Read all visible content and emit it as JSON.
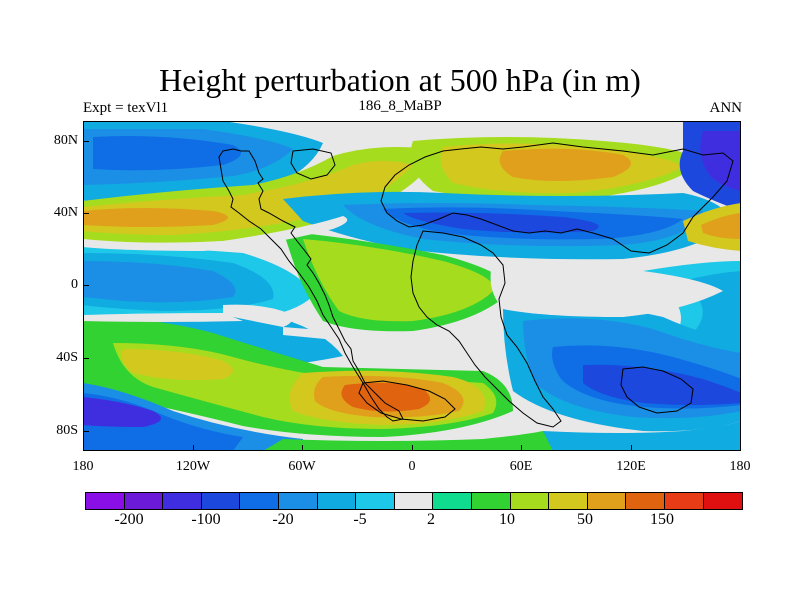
{
  "title": "Height perturbation at 500 hPa (in m)",
  "experiment_label": "Expt = texVl1",
  "period_label": "186_8_MaBP",
  "season_label": "ANN",
  "lat_labels": [
    "80N",
    "40N",
    "0",
    "40S",
    "80S"
  ],
  "lon_labels": [
    "180",
    "120W",
    "60W",
    "0",
    "60E",
    "120E",
    "180"
  ],
  "colorbar": {
    "colors": [
      "#8a0fe6",
      "#6b1ad8",
      "#3f2ee0",
      "#1d48de",
      "#0f6ee6",
      "#1b8fe6",
      "#10abe0",
      "#1ec8e8",
      "#e8e8e8",
      "#10dc90",
      "#32d232",
      "#a6dc1e",
      "#d2c81e",
      "#e0a01c",
      "#e06410",
      "#e83c16",
      "#e01010"
    ],
    "labels": [
      "-200",
      "-100",
      "-20",
      "-5",
      "2",
      "10",
      "50",
      "150"
    ]
  },
  "field_colors": {
    "c_deep_neg": "#3f2ee0",
    "c_neg2": "#1d48de",
    "c_neg3": "#0f6ee6",
    "c_neg4": "#1b8fe6",
    "c_neg5": "#10abe0",
    "c_neg6": "#1ec8e8",
    "c_zero": "#e8e8e8",
    "c_pos1": "#10dc90",
    "c_pos2": "#32d232",
    "c_pos3": "#a6dc1e",
    "c_pos4": "#d2c81e",
    "c_pos5": "#e0a01c",
    "c_pos6": "#e06410"
  }
}
